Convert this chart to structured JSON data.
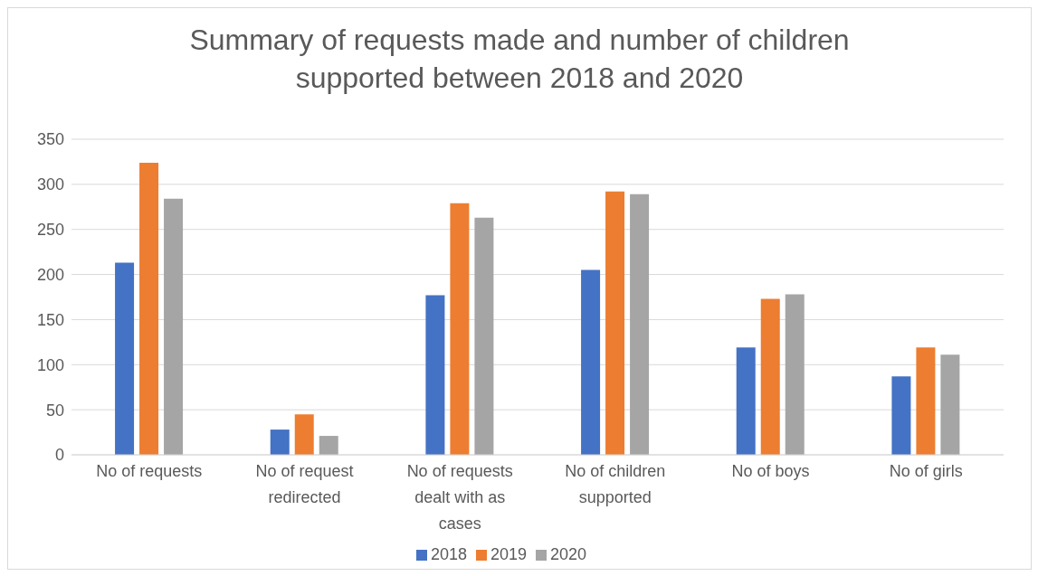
{
  "chart_data": {
    "type": "bar",
    "title": "Summary of requests made and number of children supported between 2018 and 2020",
    "categories": [
      "No of requests",
      "No of request redirected",
      "No of requests dealt with as cases",
      "No of children supported",
      "No of boys",
      "No of girls"
    ],
    "series": [
      {
        "name": "2018",
        "color": "#4472c4",
        "values": [
          213,
          28,
          177,
          205,
          119,
          87
        ]
      },
      {
        "name": "2019",
        "color": "#ed7d31",
        "values": [
          324,
          45,
          279,
          292,
          173,
          119
        ]
      },
      {
        "name": "2020",
        "color": "#a5a5a5",
        "values": [
          284,
          21,
          263,
          289,
          178,
          111
        ]
      }
    ],
    "ylim": [
      0,
      350
    ],
    "yticks": [
      0,
      50,
      100,
      150,
      200,
      250,
      300,
      350
    ],
    "grid": "y",
    "legend": "bottom"
  }
}
